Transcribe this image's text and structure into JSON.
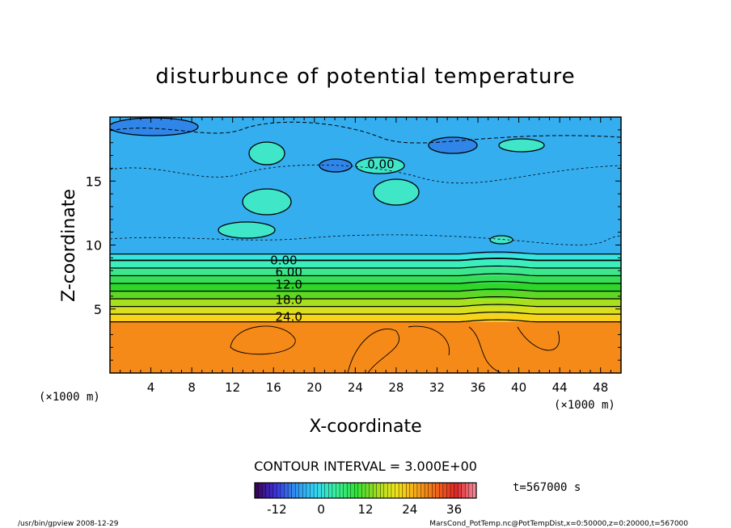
{
  "chart_data": {
    "type": "heatmap",
    "title": "disturbunce of potential temperature",
    "xlabel": "X-coordinate",
    "ylabel": "Z-coordinate",
    "x_unit_left": "(×1000 m)",
    "x_unit_right": "(×1000 m)",
    "xlim": [
      0,
      50
    ],
    "ylim": [
      0,
      20
    ],
    "x_ticks": [
      4,
      8,
      12,
      16,
      20,
      24,
      28,
      32,
      36,
      40,
      44,
      48
    ],
    "y_ticks": [
      5,
      10,
      15
    ],
    "contour_interval_label": "CONTOUR INTERVAL = 3.000E+00",
    "time_label": "t=567000 s",
    "contour_labels": [
      {
        "text": "0.00",
        "x": 17,
        "z": 8.8
      },
      {
        "text": "0.00",
        "x": 26.5,
        "z": 16.3
      },
      {
        "text": "6.00",
        "x": 17.5,
        "z": 7.9
      },
      {
        "text": "12.0",
        "x": 17.5,
        "z": 6.9
      },
      {
        "text": "18.0",
        "x": 17.5,
        "z": 5.7
      },
      {
        "text": "24.0",
        "x": 17.5,
        "z": 4.4
      }
    ],
    "colorbar": {
      "range": [
        -18,
        42
      ],
      "ticks": [
        -12,
        0,
        12,
        24,
        36
      ],
      "colors": [
        "#3a0050",
        "#3d2fd8",
        "#2f8ff0",
        "#33d5f5",
        "#3af0a0",
        "#2ee23a",
        "#9bdc20",
        "#f2e61a",
        "#f5a818",
        "#f06818",
        "#e02828",
        "#f090a0"
      ]
    },
    "layers": [
      {
        "z_from": 0,
        "z_to": 4.0,
        "value": 30,
        "color": "#f68a18"
      },
      {
        "z_from": 4.0,
        "z_to": 4.6,
        "value": 24,
        "color": "#f7d41a"
      },
      {
        "z_from": 4.6,
        "z_to": 5.2,
        "value": 21,
        "color": "#d8e01e"
      },
      {
        "z_from": 5.2,
        "z_to": 5.8,
        "value": 18,
        "color": "#a8e020"
      },
      {
        "z_from": 5.8,
        "z_to": 6.4,
        "value": 15,
        "color": "#5ed824"
      },
      {
        "z_from": 6.4,
        "z_to": 7.0,
        "value": 12,
        "color": "#2ed62a"
      },
      {
        "z_from": 7.0,
        "z_to": 7.6,
        "value": 9,
        "color": "#36de58"
      },
      {
        "z_from": 7.6,
        "z_to": 8.2,
        "value": 6,
        "color": "#3ce68c"
      },
      {
        "z_from": 8.2,
        "z_to": 8.8,
        "value": 3,
        "color": "#3ceebb"
      },
      {
        "z_from": 8.8,
        "z_to": 9.3,
        "value": 0,
        "color": "#38e6e0"
      },
      {
        "z_from": 9.3,
        "z_to": 20,
        "value": -3,
        "color": "#35aef0"
      }
    ]
  },
  "footer": {
    "left": "/usr/bin/gpview  2008-12-29",
    "right": "MarsCond_PotTemp.nc@PotTempDist,x=0:50000,z=0:20000,t=567000"
  }
}
